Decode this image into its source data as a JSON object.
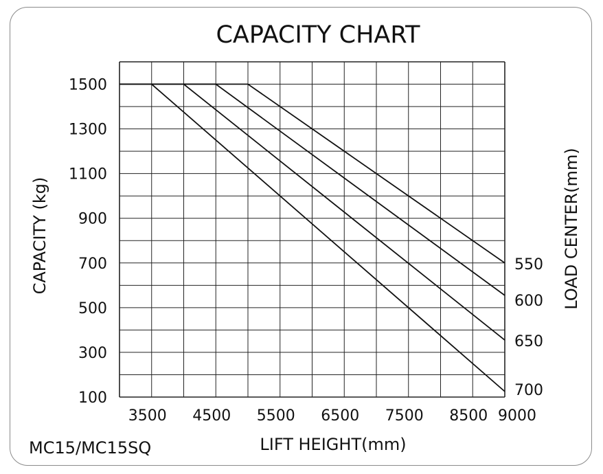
{
  "chart_data": {
    "type": "line",
    "title": "CAPACITY CHART",
    "xlabel": "LIFT HEIGHT(mm)",
    "ylabel": "CAPACITY (kg)",
    "right_label": "LOAD CENTER(mm)",
    "footnote": "MC15/MC15SQ",
    "xlim": [
      3000,
      9000
    ],
    "ylim": [
      100,
      1600
    ],
    "x_ticks": [
      3500,
      4500,
      5500,
      6500,
      7500,
      8500,
      9000
    ],
    "y_ticks": [
      100,
      300,
      500,
      700,
      900,
      1100,
      1300,
      1500
    ],
    "grid": true,
    "series": [
      {
        "name": "550",
        "x": [
          3000,
          5000,
          9000
        ],
        "y": [
          1500,
          1500,
          700
        ]
      },
      {
        "name": "600",
        "x": [
          3000,
          4500,
          9000
        ],
        "y": [
          1500,
          1500,
          555
        ]
      },
      {
        "name": "650",
        "x": [
          3000,
          4000,
          9000
        ],
        "y": [
          1500,
          1500,
          355
        ]
      },
      {
        "name": "700",
        "x": [
          3000,
          3500,
          9000
        ],
        "y": [
          1500,
          1500,
          125
        ]
      }
    ],
    "colors": {
      "line": "#111111",
      "grid": "#222222",
      "frame": "#8a8a8a"
    }
  }
}
